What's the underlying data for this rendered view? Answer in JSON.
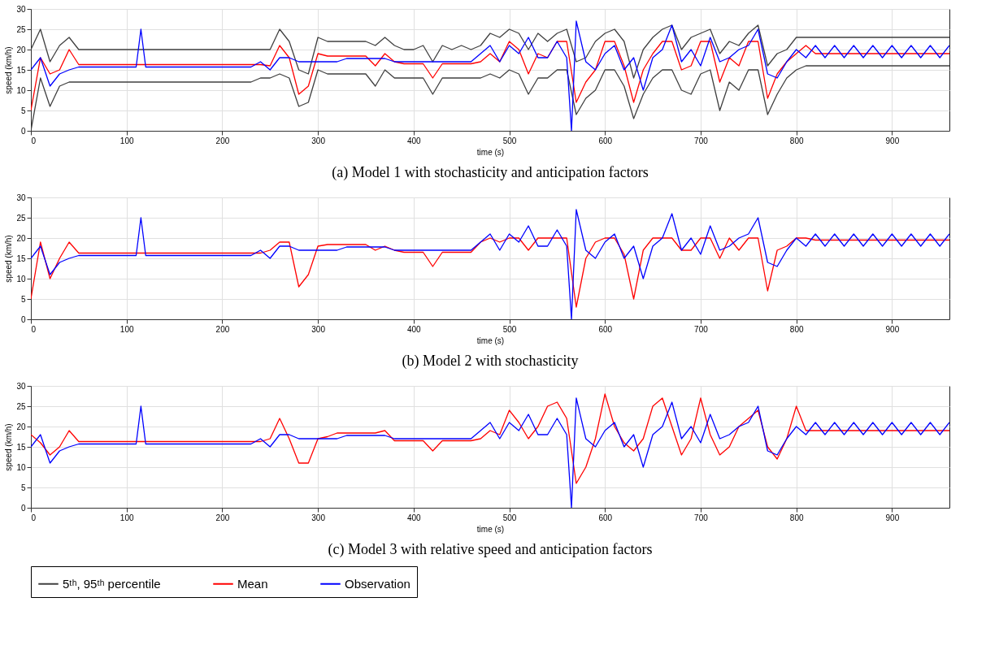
{
  "chart_data": [
    {
      "type": "line",
      "title": "(a) Model 1 with stochasticity and anticipation factors",
      "xlabel": "time (s)",
      "ylabel": "speed (km/h)",
      "xlim": [
        0,
        960
      ],
      "xticks": [
        0,
        100,
        200,
        300,
        400,
        500,
        600,
        700,
        800,
        900
      ],
      "ylim": [
        0,
        30
      ],
      "yticks": [
        0,
        5,
        10,
        15,
        20,
        25,
        30
      ],
      "grid": true,
      "legend": "bottom",
      "x": [
        0,
        10,
        20,
        30,
        40,
        50,
        60,
        70,
        80,
        90,
        100,
        110,
        120,
        130,
        140,
        150,
        160,
        170,
        180,
        190,
        200,
        210,
        220,
        230,
        240,
        250,
        260,
        270,
        280,
        290,
        300,
        310,
        320,
        330,
        340,
        350,
        360,
        370,
        380,
        390,
        400,
        410,
        420,
        430,
        440,
        450,
        460,
        470,
        480,
        490,
        500,
        510,
        520,
        530,
        540,
        550,
        560,
        570,
        580,
        590,
        600,
        610,
        620,
        630,
        640,
        650,
        660,
        670,
        680,
        690,
        700,
        710,
        720,
        730,
        740,
        750,
        760,
        770,
        780,
        790,
        800,
        810,
        820,
        830,
        840,
        850,
        860,
        870,
        880,
        890,
        900,
        910,
        920,
        930,
        940,
        950,
        960
      ],
      "series": [
        {
          "name": "5ᵗʰ, 95ᵗʰ percentile",
          "color": "#404040",
          "values": [
            0,
            13,
            6,
            11,
            12,
            12,
            12,
            12,
            12,
            12,
            12,
            12,
            12,
            12,
            12,
            12,
            12,
            12,
            12,
            12,
            12,
            12,
            12,
            12,
            13,
            13,
            14,
            13,
            6,
            7,
            15,
            14,
            14,
            14,
            14,
            14,
            11,
            15,
            13,
            13,
            13,
            13,
            9,
            13,
            13,
            13,
            13,
            13,
            14,
            13,
            15,
            14,
            9,
            13,
            13,
            15,
            15,
            4,
            8,
            10,
            15,
            15,
            11,
            3,
            9,
            13,
            15,
            15,
            10,
            9,
            14,
            15,
            5,
            12,
            10,
            15,
            15,
            4,
            9,
            13,
            15,
            16,
            16,
            16,
            16,
            16,
            16,
            16,
            16,
            16,
            16,
            16,
            16,
            16,
            16,
            16,
            16
          ]
        },
        {
          "color": "#404040",
          "values": [
            20,
            25,
            17,
            21,
            23,
            20,
            20,
            20,
            20,
            20,
            20,
            20,
            20,
            20,
            20,
            20,
            20,
            20,
            20,
            20,
            20,
            20,
            20,
            20,
            20,
            20,
            25,
            22,
            15,
            14,
            23,
            22,
            22,
            22,
            22,
            22,
            21,
            23,
            21,
            20,
            20,
            21,
            17,
            21,
            20,
            21,
            20,
            21,
            24,
            23,
            25,
            24,
            20,
            24,
            22,
            24,
            25,
            17,
            18,
            22,
            24,
            25,
            22,
            13,
            20,
            23,
            25,
            26,
            20,
            23,
            24,
            25,
            19,
            22,
            21,
            24,
            26,
            16,
            19,
            20,
            23,
            23,
            23,
            23,
            23,
            23,
            23,
            23,
            23,
            23,
            23,
            23,
            23,
            23,
            23,
            23,
            23
          ]
        },
        {
          "name": "Mean",
          "color": "#ff0000",
          "values": [
            5,
            18,
            14,
            15,
            20,
            16.3,
            16.3,
            16.3,
            16.3,
            16.3,
            16.3,
            16.3,
            16.3,
            16.3,
            16.3,
            16.3,
            16.3,
            16.3,
            16.3,
            16.3,
            16.3,
            16.3,
            16.3,
            16.3,
            16.3,
            16,
            21,
            18,
            9,
            11,
            19,
            18.4,
            18.4,
            18.4,
            18.4,
            18.4,
            16,
            19,
            17,
            16.5,
            16.5,
            16.5,
            13,
            16.5,
            16.5,
            16.5,
            16.5,
            17,
            19,
            17,
            22,
            20,
            14,
            19,
            18,
            22,
            22,
            7,
            12,
            15,
            22,
            22,
            16,
            7,
            15,
            19,
            22,
            22,
            15,
            16,
            22,
            22,
            12,
            18,
            16,
            22,
            22,
            8,
            14,
            17,
            19,
            21,
            19,
            19,
            19,
            19,
            19,
            19,
            19,
            19,
            19,
            19,
            19,
            19,
            19,
            19,
            19
          ]
        },
        {
          "name": "Observation",
          "color": "#0000ff",
          "x": [
            0,
            10,
            20,
            30,
            40,
            50,
            60,
            70,
            80,
            90,
            100,
            110,
            115,
            120,
            130,
            140,
            150,
            160,
            170,
            180,
            190,
            200,
            210,
            220,
            230,
            240,
            250,
            260,
            270,
            280,
            290,
            300,
            310,
            320,
            330,
            340,
            350,
            360,
            370,
            380,
            390,
            400,
            410,
            420,
            430,
            440,
            450,
            460,
            470,
            480,
            490,
            500,
            510,
            520,
            530,
            540,
            550,
            560,
            565,
            570,
            580,
            590,
            600,
            610,
            620,
            630,
            640,
            650,
            660,
            670,
            680,
            690,
            700,
            710,
            720,
            730,
            740,
            750,
            760,
            770,
            780,
            790,
            800,
            810,
            820,
            830,
            840,
            850,
            860,
            870,
            880,
            890,
            900,
            910,
            920,
            930,
            940,
            950,
            960
          ],
          "values": [
            15,
            18,
            11,
            14,
            15,
            15.7,
            15.7,
            15.7,
            15.7,
            15.7,
            15.7,
            15.7,
            25,
            15.7,
            15.7,
            15.7,
            15.7,
            15.7,
            15.7,
            15.7,
            15.7,
            15.7,
            15.7,
            15.7,
            15.7,
            17,
            15,
            18,
            18,
            17,
            17,
            17,
            17,
            17,
            17.8,
            17.8,
            17.8,
            17.8,
            17.8,
            17,
            17,
            17,
            17,
            17,
            17,
            17,
            17,
            17,
            19,
            21,
            17,
            21,
            19,
            23,
            18,
            18,
            22,
            18,
            0,
            27,
            17,
            15,
            19,
            21,
            15,
            18,
            10,
            18,
            20,
            26,
            17,
            20,
            16,
            23,
            17,
            18,
            20,
            21,
            25,
            14,
            13,
            17,
            20,
            18,
            21,
            18,
            21,
            18,
            21,
            18,
            21,
            18,
            21,
            18,
            21,
            18,
            21,
            18,
            21
          ]
        }
      ]
    },
    {
      "type": "line",
      "title": "(b) Model 2 with stochasticity",
      "xlabel": "time (s)",
      "ylabel": "speed (km/h)",
      "xlim": [
        0,
        960
      ],
      "xticks": [
        0,
        100,
        200,
        300,
        400,
        500,
        600,
        700,
        800,
        900
      ],
      "ylim": [
        0,
        30
      ],
      "yticks": [
        0,
        5,
        10,
        15,
        20,
        25,
        30
      ],
      "grid": true,
      "legend": "bottom",
      "x": [
        0,
        10,
        20,
        30,
        40,
        50,
        60,
        70,
        80,
        90,
        100,
        110,
        120,
        130,
        140,
        150,
        160,
        170,
        180,
        190,
        200,
        210,
        220,
        230,
        240,
        250,
        260,
        270,
        280,
        290,
        300,
        310,
        320,
        330,
        340,
        350,
        360,
        370,
        380,
        390,
        400,
        410,
        420,
        430,
        440,
        450,
        460,
        470,
        480,
        490,
        500,
        510,
        520,
        530,
        540,
        550,
        560,
        570,
        580,
        590,
        600,
        610,
        620,
        630,
        640,
        650,
        660,
        670,
        680,
        690,
        700,
        710,
        720,
        730,
        740,
        750,
        760,
        770,
        780,
        790,
        800,
        810,
        820,
        830,
        840,
        850,
        860,
        870,
        880,
        890,
        900,
        910,
        920,
        930,
        940,
        950,
        960
      ],
      "series": [
        {
          "name": "Mean",
          "color": "#ff0000",
          "values": [
            5,
            19,
            10,
            15,
            19,
            16.3,
            16.3,
            16.3,
            16.3,
            16.3,
            16.3,
            16.3,
            16.3,
            16.3,
            16.3,
            16.3,
            16.3,
            16.3,
            16.3,
            16.3,
            16.3,
            16.3,
            16.3,
            16.3,
            16.3,
            17,
            19,
            19,
            8,
            11,
            18,
            18.4,
            18.4,
            18.4,
            18.4,
            18.4,
            17,
            18,
            17,
            16.5,
            16.5,
            16.5,
            13,
            16.5,
            16.5,
            16.5,
            16.5,
            19,
            20,
            19,
            20,
            20,
            17,
            20,
            20,
            20,
            20,
            3,
            15,
            19,
            20,
            20,
            16,
            5,
            17,
            20,
            20,
            20,
            17,
            17,
            20,
            20,
            15,
            20,
            17,
            20,
            20,
            7,
            17,
            18,
            20,
            20,
            19.5,
            19.5,
            19.5,
            19.5,
            19.5,
            19.5,
            19.5,
            19.5,
            19.5,
            19.5,
            19.5,
            19.5,
            19.5,
            19.5,
            19.5
          ]
        },
        {
          "name": "Observation",
          "color": "#0000ff",
          "x": [
            0,
            10,
            20,
            30,
            40,
            50,
            60,
            70,
            80,
            90,
            100,
            110,
            115,
            120,
            130,
            140,
            150,
            160,
            170,
            180,
            190,
            200,
            210,
            220,
            230,
            240,
            250,
            260,
            270,
            280,
            290,
            300,
            310,
            320,
            330,
            340,
            350,
            360,
            370,
            380,
            390,
            400,
            410,
            420,
            430,
            440,
            450,
            460,
            470,
            480,
            490,
            500,
            510,
            520,
            530,
            540,
            550,
            560,
            565,
            570,
            580,
            590,
            600,
            610,
            620,
            630,
            640,
            650,
            660,
            670,
            680,
            690,
            700,
            710,
            720,
            730,
            740,
            750,
            760,
            770,
            780,
            790,
            800,
            810,
            820,
            830,
            840,
            850,
            860,
            870,
            880,
            890,
            900,
            910,
            920,
            930,
            940,
            950,
            960
          ],
          "values": [
            15,
            18,
            11,
            14,
            15,
            15.7,
            15.7,
            15.7,
            15.7,
            15.7,
            15.7,
            15.7,
            25,
            15.7,
            15.7,
            15.7,
            15.7,
            15.7,
            15.7,
            15.7,
            15.7,
            15.7,
            15.7,
            15.7,
            15.7,
            17,
            15,
            18,
            18,
            17,
            17,
            17,
            17,
            17,
            17.8,
            17.8,
            17.8,
            17.8,
            17.8,
            17,
            17,
            17,
            17,
            17,
            17,
            17,
            17,
            17,
            19,
            21,
            17,
            21,
            19,
            23,
            18,
            18,
            22,
            18,
            0,
            27,
            17,
            15,
            19,
            21,
            15,
            18,
            10,
            18,
            20,
            26,
            17,
            20,
            16,
            23,
            17,
            18,
            20,
            21,
            25,
            14,
            13,
            17,
            20,
            18,
            21,
            18,
            21,
            18,
            21,
            18,
            21,
            18,
            21,
            18,
            21,
            18,
            21,
            18,
            21
          ]
        }
      ]
    },
    {
      "type": "line",
      "title": "(c) Model 3 with relative speed and anticipation factors",
      "xlabel": "time (s)",
      "ylabel": "speed (km/h)",
      "xlim": [
        0,
        960
      ],
      "xticks": [
        0,
        100,
        200,
        300,
        400,
        500,
        600,
        700,
        800,
        900
      ],
      "ylim": [
        0,
        30
      ],
      "yticks": [
        0,
        5,
        10,
        15,
        20,
        25,
        30
      ],
      "grid": true,
      "legend": "bottom",
      "x": [
        0,
        10,
        20,
        30,
        40,
        50,
        60,
        70,
        80,
        90,
        100,
        110,
        120,
        130,
        140,
        150,
        160,
        170,
        180,
        190,
        200,
        210,
        220,
        230,
        240,
        250,
        260,
        270,
        280,
        290,
        300,
        310,
        320,
        330,
        340,
        350,
        360,
        370,
        380,
        390,
        400,
        410,
        420,
        430,
        440,
        450,
        460,
        470,
        480,
        490,
        500,
        510,
        520,
        530,
        540,
        550,
        560,
        570,
        580,
        590,
        600,
        610,
        620,
        630,
        640,
        650,
        660,
        670,
        680,
        690,
        700,
        710,
        720,
        730,
        740,
        750,
        760,
        770,
        780,
        790,
        800,
        810,
        820,
        830,
        840,
        850,
        860,
        870,
        880,
        890,
        900,
        910,
        920,
        930,
        940,
        950,
        960
      ],
      "series": [
        {
          "name": "Mean",
          "color": "#ff0000",
          "values": [
            18,
            16,
            13,
            15,
            19,
            16.3,
            16.3,
            16.3,
            16.3,
            16.3,
            16.3,
            16.3,
            16.3,
            16.3,
            16.3,
            16.3,
            16.3,
            16.3,
            16.3,
            16.3,
            16.3,
            16.3,
            16.3,
            16.3,
            16.3,
            17,
            22,
            17,
            11,
            11,
            17,
            17.5,
            18.4,
            18.4,
            18.4,
            18.4,
            18.4,
            19,
            16.5,
            16.5,
            16.5,
            16.5,
            14,
            16.5,
            16.5,
            16.5,
            16.5,
            17,
            19,
            18,
            24,
            21,
            17,
            20,
            25,
            26,
            22,
            6,
            10,
            17,
            28,
            20,
            16,
            14,
            17,
            25,
            27,
            20,
            13,
            17,
            27,
            18,
            13,
            15,
            20,
            22,
            24,
            15,
            12,
            17,
            25,
            19,
            19,
            19,
            19,
            19,
            19,
            19,
            19,
            19,
            19,
            19,
            19,
            19,
            19,
            19,
            19
          ]
        },
        {
          "name": "Observation",
          "color": "#0000ff",
          "x": [
            0,
            10,
            20,
            30,
            40,
            50,
            60,
            70,
            80,
            90,
            100,
            110,
            115,
            120,
            130,
            140,
            150,
            160,
            170,
            180,
            190,
            200,
            210,
            220,
            230,
            240,
            250,
            260,
            270,
            280,
            290,
            300,
            310,
            320,
            330,
            340,
            350,
            360,
            370,
            380,
            390,
            400,
            410,
            420,
            430,
            440,
            450,
            460,
            470,
            480,
            490,
            500,
            510,
            520,
            530,
            540,
            550,
            560,
            565,
            570,
            580,
            590,
            600,
            610,
            620,
            630,
            640,
            650,
            660,
            670,
            680,
            690,
            700,
            710,
            720,
            730,
            740,
            750,
            760,
            770,
            780,
            790,
            800,
            810,
            820,
            830,
            840,
            850,
            860,
            870,
            880,
            890,
            900,
            910,
            920,
            930,
            940,
            950,
            960
          ],
          "values": [
            15,
            18,
            11,
            14,
            15,
            15.7,
            15.7,
            15.7,
            15.7,
            15.7,
            15.7,
            15.7,
            25,
            15.7,
            15.7,
            15.7,
            15.7,
            15.7,
            15.7,
            15.7,
            15.7,
            15.7,
            15.7,
            15.7,
            15.7,
            17,
            15,
            18,
            18,
            17,
            17,
            17,
            17,
            17,
            17.8,
            17.8,
            17.8,
            17.8,
            17.8,
            17,
            17,
            17,
            17,
            17,
            17,
            17,
            17,
            17,
            19,
            21,
            17,
            21,
            19,
            23,
            18,
            18,
            22,
            18,
            0,
            27,
            17,
            15,
            19,
            21,
            15,
            18,
            10,
            18,
            20,
            26,
            17,
            20,
            16,
            23,
            17,
            18,
            20,
            21,
            25,
            14,
            13,
            17,
            20,
            18,
            21,
            18,
            21,
            18,
            21,
            18,
            21,
            18,
            21,
            18,
            21,
            18,
            21,
            18,
            21
          ]
        }
      ]
    }
  ]
}
